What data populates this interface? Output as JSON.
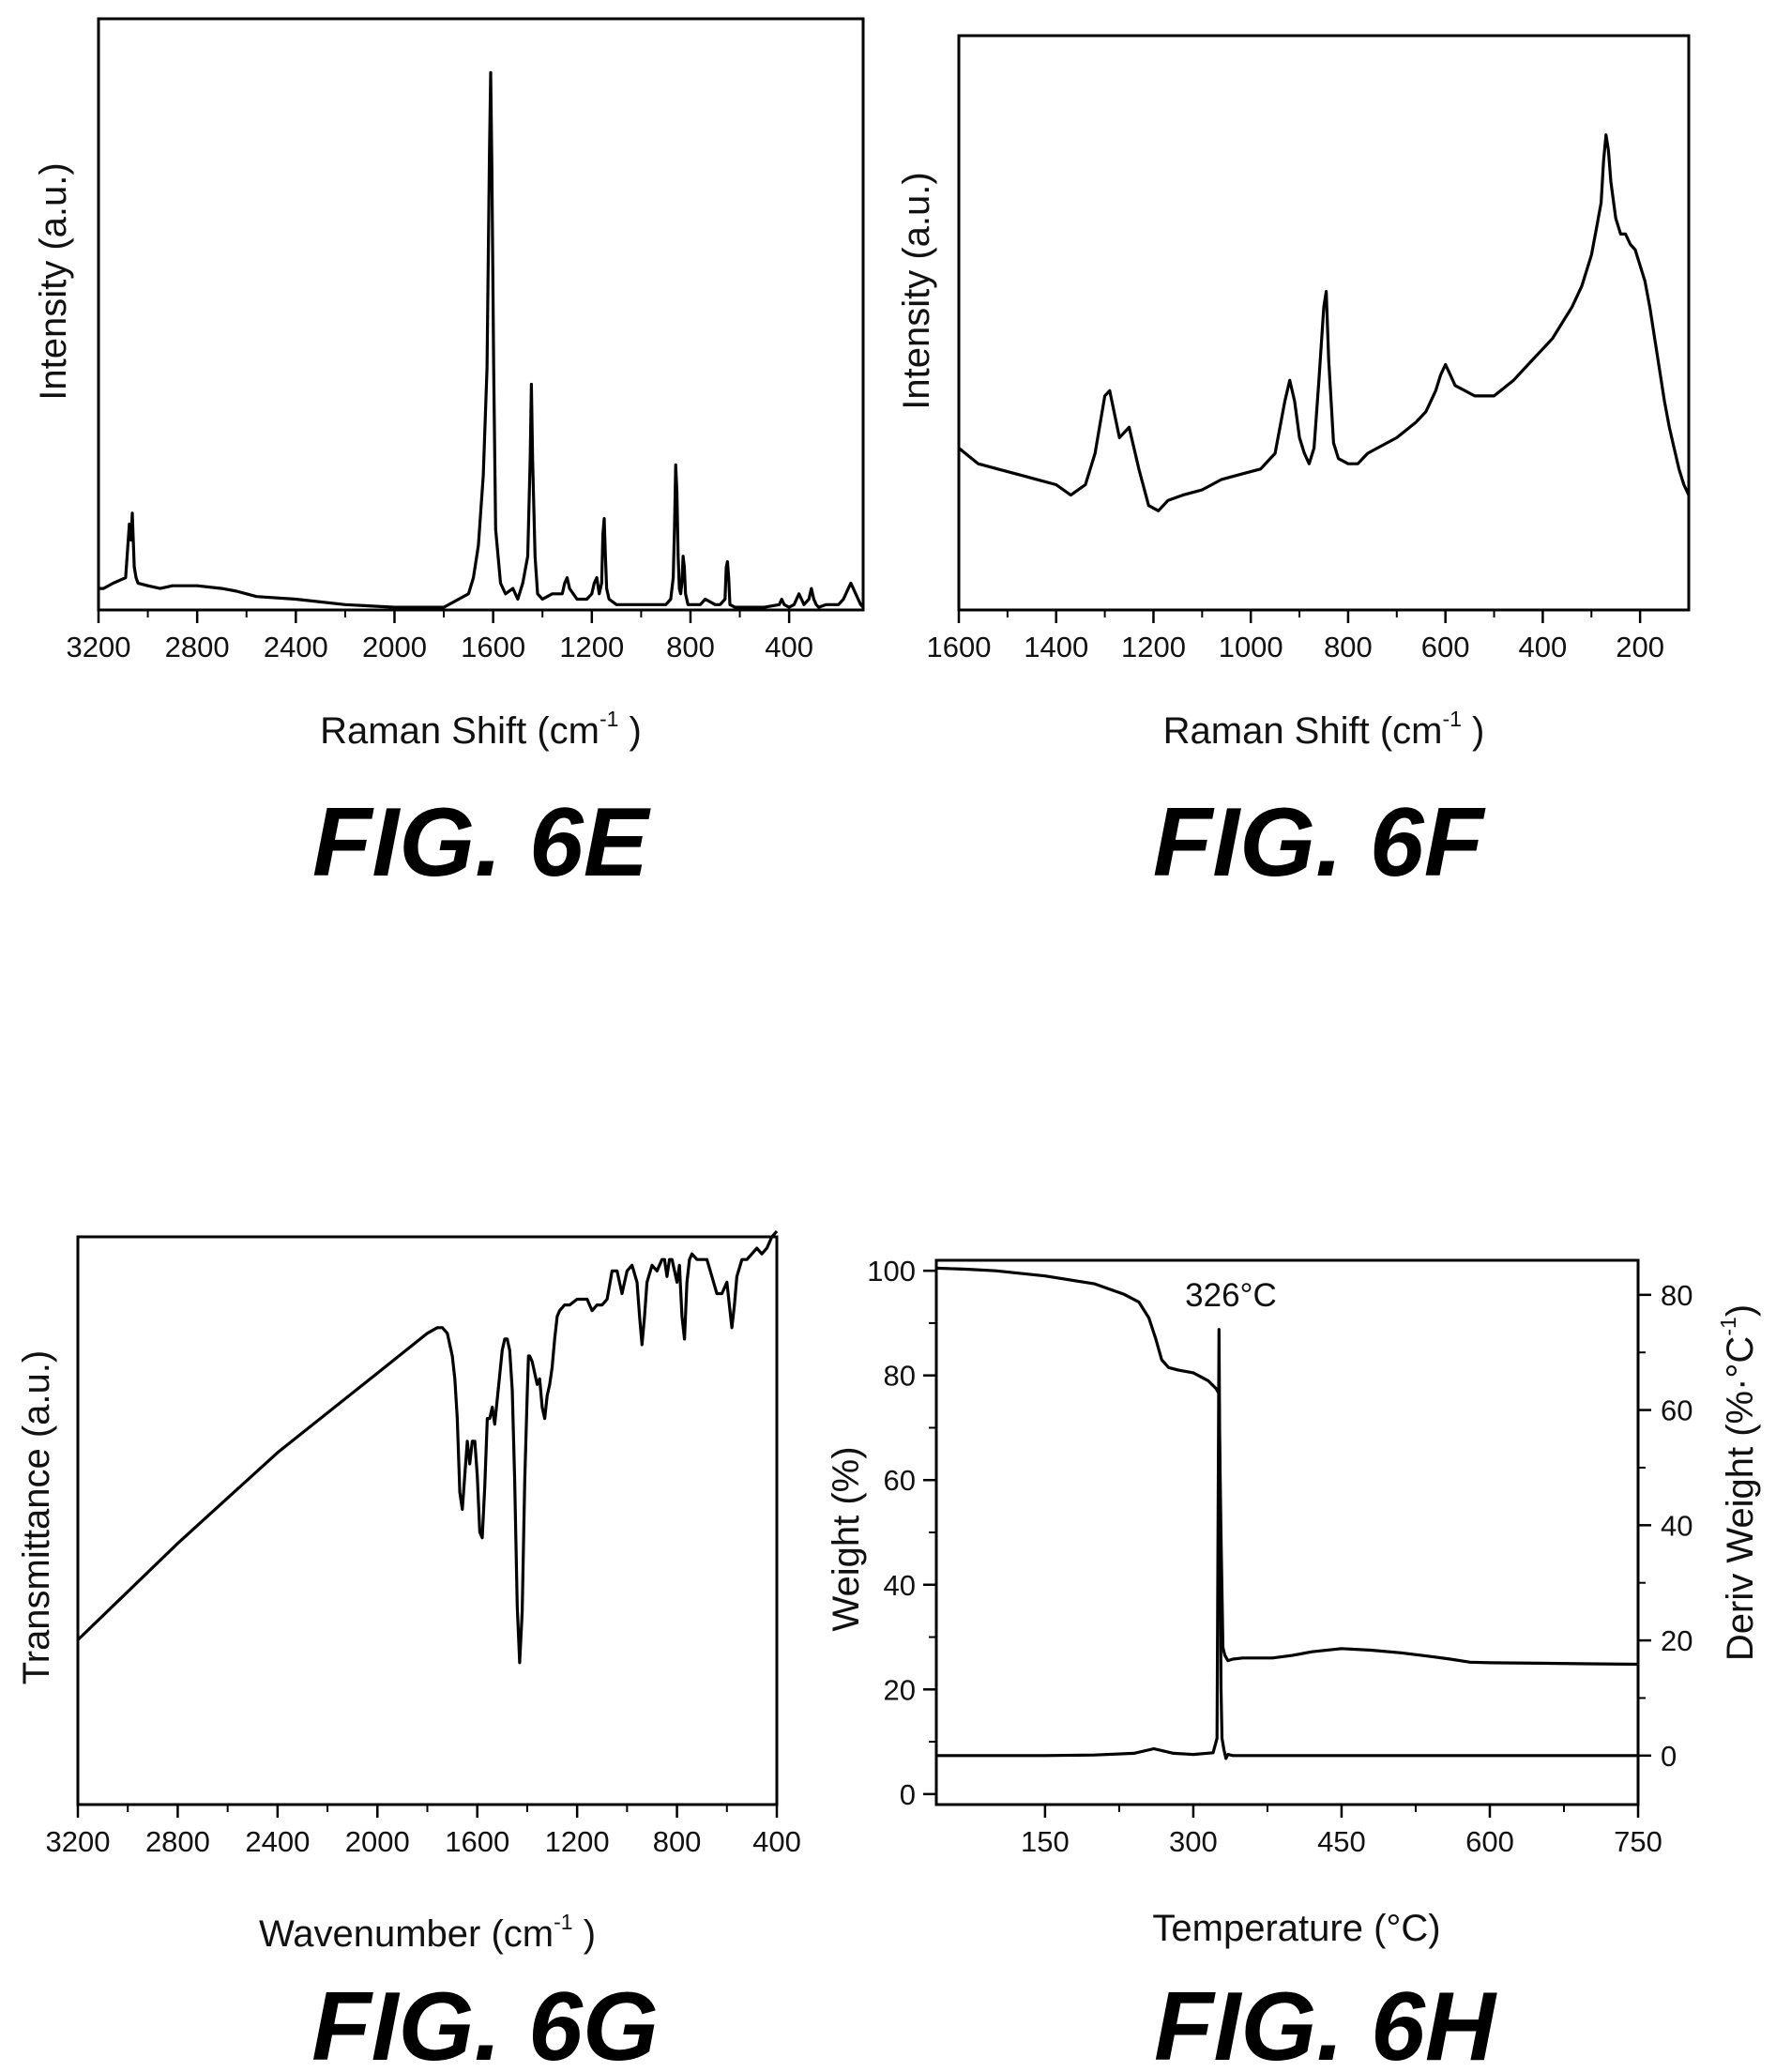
{
  "figures": [
    {
      "label": "FIG. 6E"
    },
    {
      "label": "FIG. 6F"
    },
    {
      "label": "FIG. 6G"
    },
    {
      "label": "FIG. 6H"
    }
  ],
  "chart_data": [
    {
      "type": "line",
      "figure": "FIG. 6E",
      "xlabel": "Raman Shift (cm",
      "xlabel_sup": "-1",
      "xlabel_end": " )",
      "ylabel": "Intensity (a.u.)",
      "xlim": [
        3200,
        100
      ],
      "ylim": [
        0,
        1.1
      ],
      "x_ticks": [
        3200,
        2800,
        2400,
        2000,
        1600,
        1200,
        800,
        400
      ],
      "y_ticks": [],
      "series": [
        {
          "x": [
            3200,
            3180,
            3140,
            3090,
            3075,
            3068,
            3063,
            3055,
            3048,
            3040,
            3000,
            2950,
            2900,
            2800,
            2700,
            2640,
            2600,
            2560,
            2400,
            2200,
            2000,
            1800,
            1700,
            1680,
            1660,
            1640,
            1625,
            1615,
            1610,
            1605,
            1598,
            1590,
            1570,
            1550,
            1520,
            1500,
            1480,
            1460,
            1450,
            1445,
            1440,
            1430,
            1420,
            1400,
            1360,
            1320,
            1310,
            1300,
            1290,
            1260,
            1220,
            1200,
            1190,
            1180,
            1170,
            1160,
            1155,
            1150,
            1145,
            1140,
            1130,
            1100,
            1060,
            1020,
            1000,
            990,
            985,
            980,
            970,
            940,
            900,
            880,
            870,
            865,
            860,
            855,
            850,
            845,
            840,
            835,
            830,
            825,
            820,
            815,
            810,
            800,
            780,
            760,
            740,
            700,
            680,
            660,
            655,
            650,
            645,
            640,
            620,
            600,
            500,
            440,
            430,
            420,
            400,
            380,
            370,
            360,
            350,
            340,
            320,
            310,
            300,
            290,
            280,
            250,
            200,
            180,
            160,
            150,
            140,
            130,
            120,
            110,
            100
          ],
          "y": [
            0.04,
            0.04,
            0.05,
            0.06,
            0.16,
            0.13,
            0.18,
            0.08,
            0.06,
            0.05,
            0.045,
            0.04,
            0.045,
            0.045,
            0.04,
            0.035,
            0.03,
            0.025,
            0.02,
            0.01,
            0.005,
            0.005,
            0.03,
            0.06,
            0.12,
            0.25,
            0.45,
            0.85,
            1.0,
            0.82,
            0.45,
            0.15,
            0.05,
            0.03,
            0.04,
            0.02,
            0.05,
            0.1,
            0.28,
            0.42,
            0.28,
            0.1,
            0.03,
            0.02,
            0.03,
            0.03,
            0.05,
            0.06,
            0.04,
            0.02,
            0.02,
            0.03,
            0.05,
            0.06,
            0.03,
            0.05,
            0.14,
            0.17,
            0.1,
            0.04,
            0.02,
            0.01,
            0.01,
            0.01,
            0.01,
            0.01,
            0.01,
            0.01,
            0.01,
            0.01,
            0.01,
            0.02,
            0.06,
            0.15,
            0.27,
            0.22,
            0.1,
            0.04,
            0.03,
            0.05,
            0.1,
            0.08,
            0.03,
            0.02,
            0.01,
            0.01,
            0.01,
            0.01,
            0.02,
            0.01,
            0.01,
            0.02,
            0.08,
            0.09,
            0.06,
            0.01,
            0.005,
            0.005,
            0.005,
            0.01,
            0.02,
            0.01,
            0.005,
            0.01,
            0.02,
            0.03,
            0.02,
            0.01,
            0.02,
            0.04,
            0.02,
            0.01,
            0.005,
            0.01,
            0.01,
            0.02,
            0.04,
            0.05,
            0.04,
            0.03,
            0.02,
            0.01,
            0.005
          ]
        }
      ]
    },
    {
      "type": "line",
      "figure": "FIG. 6F",
      "xlabel": "Raman Shift (cm",
      "xlabel_sup": "-1",
      "xlabel_end": " )",
      "ylabel": "Intensity (a.u.)",
      "xlim": [
        1600,
        100
      ],
      "ylim": [
        0,
        1.1
      ],
      "x_ticks": [
        1600,
        1400,
        1200,
        1000,
        800,
        600,
        400,
        200
      ],
      "y_ticks": [],
      "series": [
        {
          "x": [
            1600,
            1560,
            1520,
            1480,
            1440,
            1400,
            1370,
            1340,
            1320,
            1300,
            1290,
            1270,
            1250,
            1230,
            1210,
            1190,
            1170,
            1140,
            1100,
            1060,
            1020,
            980,
            950,
            930,
            920,
            910,
            900,
            890,
            880,
            870,
            860,
            850,
            845,
            840,
            830,
            820,
            800,
            780,
            760,
            740,
            700,
            660,
            640,
            620,
            610,
            600,
            590,
            580,
            560,
            540,
            500,
            460,
            420,
            400,
            380,
            360,
            340,
            320,
            300,
            290,
            280,
            275,
            270,
            265,
            260,
            250,
            240,
            230,
            220,
            210,
            200,
            190,
            180,
            170,
            160,
            150,
            140,
            130,
            120,
            110,
            100
          ],
          "y": [
            0.31,
            0.28,
            0.27,
            0.26,
            0.25,
            0.24,
            0.22,
            0.24,
            0.3,
            0.41,
            0.42,
            0.33,
            0.35,
            0.27,
            0.2,
            0.19,
            0.21,
            0.22,
            0.23,
            0.25,
            0.26,
            0.27,
            0.3,
            0.4,
            0.44,
            0.4,
            0.33,
            0.3,
            0.28,
            0.31,
            0.44,
            0.58,
            0.61,
            0.48,
            0.32,
            0.29,
            0.28,
            0.28,
            0.3,
            0.31,
            0.33,
            0.36,
            0.38,
            0.42,
            0.45,
            0.47,
            0.45,
            0.43,
            0.42,
            0.41,
            0.41,
            0.44,
            0.48,
            0.5,
            0.52,
            0.55,
            0.58,
            0.62,
            0.68,
            0.73,
            0.78,
            0.86,
            0.91,
            0.88,
            0.82,
            0.75,
            0.72,
            0.72,
            0.7,
            0.69,
            0.66,
            0.63,
            0.58,
            0.52,
            0.46,
            0.4,
            0.35,
            0.31,
            0.27,
            0.24,
            0.22
          ]
        }
      ]
    },
    {
      "type": "line",
      "figure": "FIG. 6G",
      "xlabel": "Wavenumber (cm",
      "xlabel_sup": "-1",
      "xlabel_end": " )",
      "ylabel": "Transmittance (a.u.)",
      "xlim": [
        3200,
        400
      ],
      "ylim": [
        0,
        1
      ],
      "x_ticks": [
        3200,
        2800,
        2400,
        2000,
        1600,
        1200,
        800,
        400
      ],
      "y_ticks": [],
      "series": [
        {
          "x": [
            3200,
            2800,
            2400,
            2000,
            1800,
            1760,
            1740,
            1720,
            1700,
            1690,
            1680,
            1670,
            1660,
            1650,
            1640,
            1630,
            1620,
            1610,
            1600,
            1590,
            1580,
            1570,
            1560,
            1550,
            1540,
            1530,
            1500,
            1490,
            1480,
            1470,
            1460,
            1450,
            1440,
            1430,
            1420,
            1410,
            1400,
            1395,
            1390,
            1380,
            1370,
            1360,
            1350,
            1340,
            1330,
            1320,
            1310,
            1300,
            1290,
            1280,
            1270,
            1250,
            1230,
            1200,
            1180,
            1160,
            1140,
            1120,
            1100,
            1080,
            1060,
            1040,
            1020,
            1000,
            980,
            960,
            950,
            940,
            930,
            920,
            900,
            880,
            860,
            850,
            840,
            830,
            820,
            800,
            790,
            780,
            770,
            760,
            750,
            740,
            720,
            700,
            680,
            660,
            640,
            620,
            600,
            590,
            580,
            570,
            560,
            540,
            520,
            500,
            480,
            460,
            440,
            420,
            400
          ],
          "y": [
            0.29,
            0.46,
            0.62,
            0.76,
            0.83,
            0.84,
            0.84,
            0.83,
            0.79,
            0.75,
            0.68,
            0.55,
            0.52,
            0.58,
            0.64,
            0.6,
            0.64,
            0.64,
            0.58,
            0.48,
            0.47,
            0.56,
            0.68,
            0.68,
            0.7,
            0.67,
            0.8,
            0.82,
            0.82,
            0.8,
            0.73,
            0.57,
            0.35,
            0.25,
            0.34,
            0.57,
            0.72,
            0.79,
            0.79,
            0.78,
            0.76,
            0.74,
            0.75,
            0.7,
            0.68,
            0.72,
            0.74,
            0.77,
            0.82,
            0.86,
            0.87,
            0.88,
            0.88,
            0.89,
            0.89,
            0.89,
            0.87,
            0.88,
            0.88,
            0.89,
            0.94,
            0.94,
            0.9,
            0.94,
            0.95,
            0.92,
            0.86,
            0.81,
            0.86,
            0.92,
            0.95,
            0.94,
            0.96,
            0.96,
            0.93,
            0.96,
            0.96,
            0.92,
            0.95,
            0.86,
            0.82,
            0.92,
            0.96,
            0.97,
            0.96,
            0.96,
            0.96,
            0.93,
            0.9,
            0.9,
            0.92,
            0.88,
            0.84,
            0.88,
            0.93,
            0.96,
            0.96,
            0.97,
            0.98,
            0.97,
            0.98,
            1.0,
            1.01
          ]
        }
      ]
    },
    {
      "type": "line",
      "figure": "FIG. 6H",
      "xlabel": "Temperature (°C)",
      "ylabel": "Weight (%)",
      "ylabel2": "Deriv Weight (%·°C",
      "ylabel2_sup": "-1",
      "ylabel2_end": ")",
      "xlim": [
        40,
        750
      ],
      "ylim": [
        -2,
        102
      ],
      "y2lim": [
        -8.5,
        86
      ],
      "x_ticks": [
        150,
        300,
        450,
        600,
        750
      ],
      "y_ticks": [
        0,
        20,
        40,
        60,
        80,
        100
      ],
      "y2_ticks": [
        0,
        20,
        40,
        60,
        80
      ],
      "annotations": [
        {
          "text": "326°C"
        }
      ],
      "series": [
        {
          "name": "Weight",
          "axis": "left",
          "x": [
            40,
            70,
            100,
            150,
            200,
            230,
            245,
            255,
            262,
            268,
            275,
            285,
            300,
            315,
            323,
            326,
            328,
            330,
            332,
            335,
            340,
            350,
            380,
            400,
            420,
            450,
            480,
            510,
            540,
            560,
            580,
            600,
            650,
            700,
            750
          ],
          "y": [
            100.5,
            100.3,
            100,
            99,
            97.5,
            95.5,
            94,
            91,
            87,
            83,
            81.5,
            81,
            80.5,
            79,
            77.5,
            76.5,
            50,
            28,
            26.5,
            25.5,
            25.8,
            26,
            26,
            26.5,
            27.2,
            27.8,
            27.5,
            27,
            26.3,
            25.8,
            25.2,
            25.1,
            25,
            24.9,
            24.8
          ]
        },
        {
          "name": "Deriv Weight",
          "axis": "right",
          "x": [
            40,
            100,
            150,
            200,
            240,
            260,
            270,
            280,
            300,
            320,
            324,
            325,
            326,
            327,
            328,
            329,
            331,
            333,
            335,
            340,
            400,
            500,
            600,
            700,
            750
          ],
          "y": [
            0,
            0,
            0,
            0.1,
            0.4,
            1.2,
            0.8,
            0.4,
            0.2,
            0.5,
            3,
            40,
            74,
            45,
            12,
            3,
            1,
            -0.5,
            0.2,
            0,
            0,
            0,
            0,
            0,
            0
          ]
        }
      ]
    }
  ]
}
